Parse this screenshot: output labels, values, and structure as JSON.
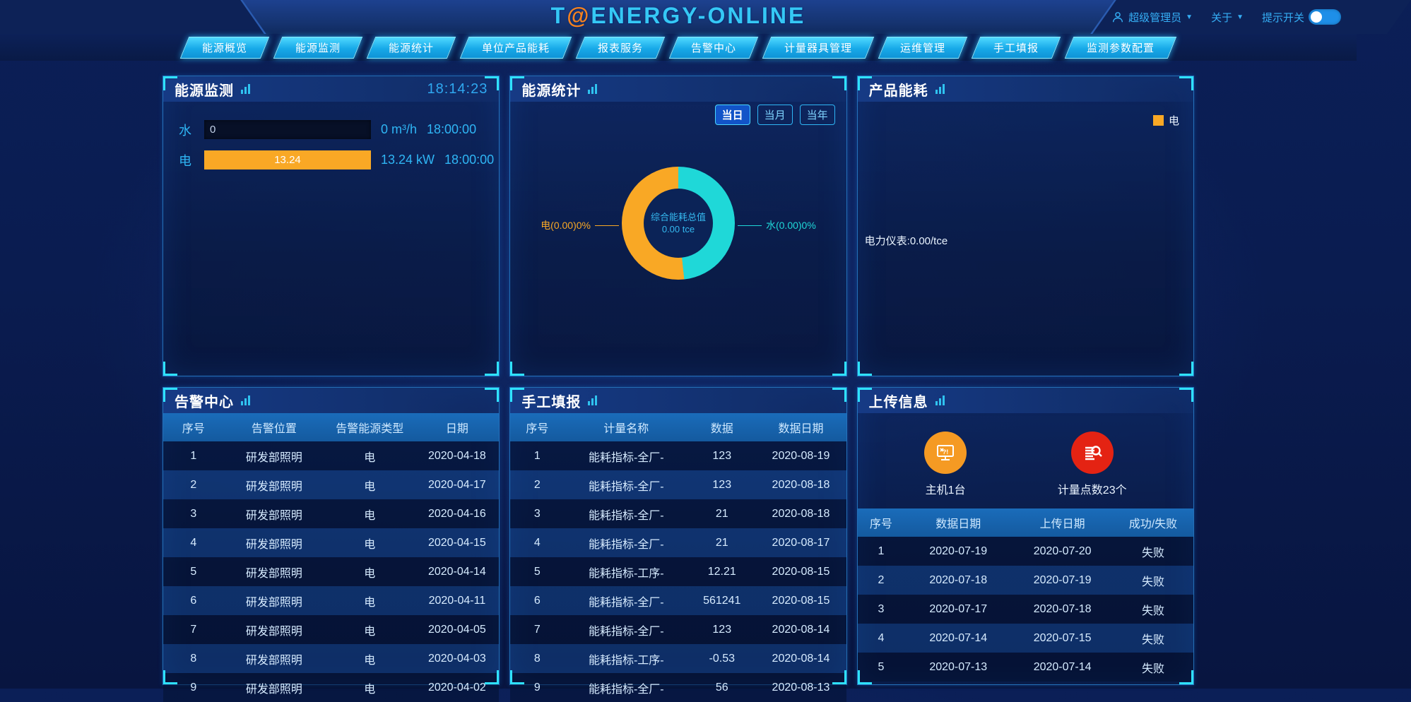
{
  "colors": {
    "accent_cyan": "#2fe2ff",
    "accent_blue": "#1e8fe8",
    "orange": "#f9a825",
    "teal": "#1fd8d8",
    "red": "#e42313"
  },
  "header": {
    "logo_prefix": "T",
    "logo_at": "@",
    "logo_suffix": "ENERGY-ONLINE",
    "user_name": "超级管理员",
    "about_label": "关于",
    "tip_toggle_label": "提示开关",
    "nav": [
      "能源概览",
      "能源监测",
      "能源统计",
      "单位产品能耗",
      "报表服务",
      "告警中心",
      "计量器具管理",
      "运维管理",
      "手工填报",
      "监测参数配置"
    ]
  },
  "energy_monitor": {
    "title": "能源监测",
    "time": "18:14:23",
    "rows": [
      {
        "label": "水",
        "bar_value": "0",
        "value": "0 m³/h",
        "time": "18:00:00",
        "fill_pct": 0
      },
      {
        "label": "电",
        "bar_value": "13.24",
        "value": "13.24 kW",
        "time": "18:00:00",
        "fill_pct": 100
      }
    ]
  },
  "energy_stats": {
    "title": "能源统计",
    "tabs": [
      "当日",
      "当月",
      "当年"
    ],
    "active_tab": "当日",
    "callout_electric": "电(0.00)0%",
    "callout_water": "水(0.00)0%",
    "center_line1": "综合能耗总值",
    "center_line2": "0.00 tce"
  },
  "chart_data": {
    "type": "pie",
    "title": "综合能耗总值",
    "center_total": "0.00 tce",
    "slices": [
      {
        "name": "水",
        "value": 0.0,
        "percent": "0%",
        "color": "#1fd8d8"
      },
      {
        "name": "电",
        "value": 0.0,
        "percent": "0%",
        "color": "#f9a825"
      }
    ],
    "water_sweep_deg": 174,
    "legend_position": "callout-lines",
    "donut": true
  },
  "product_energy": {
    "title": "产品能耗",
    "legend_label": "电",
    "meter_label": "电力仪表:0.00/tce"
  },
  "alarm_center": {
    "title": "告警中心",
    "columns": [
      "序号",
      "告警位置",
      "告警能源类型",
      "日期"
    ],
    "rows": [
      [
        "1",
        "研发部照明",
        "电",
        "2020-04-18"
      ],
      [
        "2",
        "研发部照明",
        "电",
        "2020-04-17"
      ],
      [
        "3",
        "研发部照明",
        "电",
        "2020-04-16"
      ],
      [
        "4",
        "研发部照明",
        "电",
        "2020-04-15"
      ],
      [
        "5",
        "研发部照明",
        "电",
        "2020-04-14"
      ],
      [
        "6",
        "研发部照明",
        "电",
        "2020-04-11"
      ],
      [
        "7",
        "研发部照明",
        "电",
        "2020-04-05"
      ],
      [
        "8",
        "研发部照明",
        "电",
        "2020-04-03"
      ],
      [
        "9",
        "研发部照明",
        "电",
        "2020-04-02"
      ]
    ]
  },
  "manual_report": {
    "title": "手工填报",
    "columns": [
      "序号",
      "计量名称",
      "数据",
      "数据日期"
    ],
    "rows": [
      [
        "1",
        "能耗指标-全厂-",
        "123",
        "2020-08-19"
      ],
      [
        "2",
        "能耗指标-全厂-",
        "123",
        "2020-08-18"
      ],
      [
        "3",
        "能耗指标-全厂-",
        "21",
        "2020-08-18"
      ],
      [
        "4",
        "能耗指标-全厂-",
        "21",
        "2020-08-17"
      ],
      [
        "5",
        "能耗指标-工序-",
        "12.21",
        "2020-08-15"
      ],
      [
        "6",
        "能耗指标-全厂-",
        "561241",
        "2020-08-15"
      ],
      [
        "7",
        "能耗指标-全厂-",
        "123",
        "2020-08-14"
      ],
      [
        "8",
        "能耗指标-工序-",
        "-0.53",
        "2020-08-14"
      ],
      [
        "9",
        "能耗指标-全厂-",
        "56",
        "2020-08-13"
      ]
    ]
  },
  "upload_info": {
    "title": "上传信息",
    "stat_host_label": "主机1台",
    "stat_points_label": "计量点数23个",
    "columns": [
      "序号",
      "数据日期",
      "上传日期",
      "成功/失败"
    ],
    "rows": [
      [
        "1",
        "2020-07-19",
        "2020-07-20",
        "失败"
      ],
      [
        "2",
        "2020-07-18",
        "2020-07-19",
        "失败"
      ],
      [
        "3",
        "2020-07-17",
        "2020-07-18",
        "失败"
      ],
      [
        "4",
        "2020-07-14",
        "2020-07-15",
        "失败"
      ],
      [
        "5",
        "2020-07-13",
        "2020-07-14",
        "失败"
      ]
    ]
  }
}
